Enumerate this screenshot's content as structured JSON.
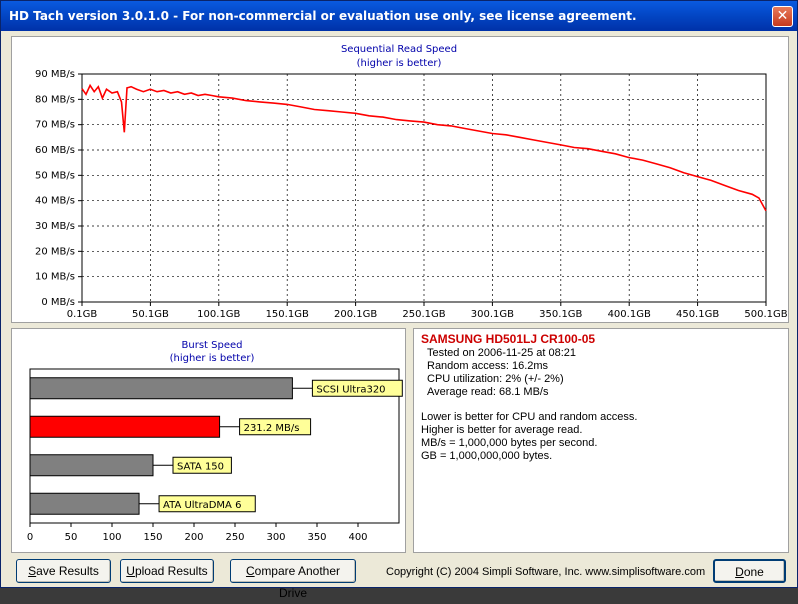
{
  "window": {
    "title": "HD Tach version 3.0.1.0  - For non-commercial or evaluation use only, see license agreement.",
    "close_glyph": "✕"
  },
  "seq_chart_data": {
    "type": "line",
    "title": "Sequential Read Speed",
    "subtitle": "(higher is better)",
    "ylim": [
      0,
      90
    ],
    "xlim": [
      0.1,
      500.1
    ],
    "y_ticks": [
      "0 MB/s",
      "10 MB/s",
      "20 MB/s",
      "30 MB/s",
      "40 MB/s",
      "50 MB/s",
      "60 MB/s",
      "70 MB/s",
      "80 MB/s",
      "90 MB/s"
    ],
    "x_ticks": [
      "0.1GB",
      "50.1GB",
      "100.1GB",
      "150.1GB",
      "200.1GB",
      "250.1GB",
      "300.1GB",
      "350.1GB",
      "400.1GB",
      "450.1GB",
      "500.1GB"
    ],
    "grid": true,
    "line_color": "#ff0000",
    "series": [
      {
        "x": [
          0.1,
          3,
          6,
          9,
          12,
          15,
          18,
          22,
          26,
          29,
          31,
          33,
          36,
          40,
          45,
          50,
          55,
          60,
          65,
          70,
          75,
          80,
          85,
          90,
          95,
          100,
          110,
          120,
          130,
          140,
          150,
          160,
          170,
          180,
          190,
          200,
          210,
          220,
          230,
          240,
          250,
          260,
          270,
          280,
          290,
          300,
          310,
          320,
          330,
          340,
          350,
          360,
          370,
          380,
          390,
          400,
          410,
          420,
          430,
          440,
          450,
          460,
          470,
          480,
          490,
          495,
          500
        ],
        "y": [
          84.2,
          82.0,
          85.5,
          83.0,
          85.0,
          80.5,
          84.0,
          82.5,
          83.0,
          79.0,
          67.0,
          84.5,
          85.0,
          84.0,
          83.0,
          84.0,
          83.0,
          83.5,
          82.5,
          83.0,
          82.0,
          82.5,
          81.5,
          82.0,
          81.5,
          81.0,
          80.5,
          79.5,
          79.0,
          78.5,
          78.0,
          77.0,
          76.0,
          75.5,
          75.0,
          74.5,
          73.5,
          73.0,
          72.0,
          71.5,
          71.0,
          70.0,
          69.5,
          68.5,
          67.5,
          66.5,
          66.0,
          65.0,
          64.0,
          63.0,
          62.0,
          61.0,
          60.5,
          59.5,
          58.5,
          57.0,
          56.0,
          54.5,
          53.0,
          51.0,
          49.5,
          48.0,
          46.0,
          44.0,
          42.5,
          41.0,
          36.0
        ]
      }
    ]
  },
  "burst_chart_data": {
    "type": "bar",
    "title": "Burst Speed",
    "subtitle": "(higher is better)",
    "xlim": [
      0,
      450
    ],
    "x_ticks": [
      "0",
      "50",
      "100",
      "150",
      "200",
      "250",
      "300",
      "350",
      "400"
    ],
    "bars": [
      {
        "label": "SCSI Ultra320",
        "value": 320,
        "color": "#808080"
      },
      {
        "label": "231.2 MB/s",
        "value": 231.2,
        "color": "#ff0000"
      },
      {
        "label": "SATA 150",
        "value": 150,
        "color": "#808080"
      },
      {
        "label": "ATA UltraDMA 6",
        "value": 133,
        "color": "#808080"
      }
    ]
  },
  "info": {
    "drive": "SAMSUNG HD501LJ CR100-05",
    "tested": "Tested on 2006-11-25 at 08:21",
    "random_access": "Random access: 16.2ms",
    "cpu": "CPU utilization: 2% (+/- 2%)",
    "avg_read": "Average read: 68.1 MB/s",
    "note1": "Lower is better for CPU and random access.",
    "note2": "Higher is better for average read.",
    "note3": "MB/s = 1,000,000 bytes per second.",
    "note4": "GB = 1,000,000,000 bytes."
  },
  "buttons": {
    "save": {
      "first": "S",
      "rest": "ave Results"
    },
    "upload": {
      "first": "U",
      "rest": "pload Results"
    },
    "compare": {
      "first": "C",
      "rest": "ompare Another Drive"
    },
    "done": {
      "first": "D",
      "rest": "one"
    }
  },
  "footer": {
    "copyright": "Copyright (C) 2004 Simpli Software, Inc. www.simplisoftware.com"
  }
}
